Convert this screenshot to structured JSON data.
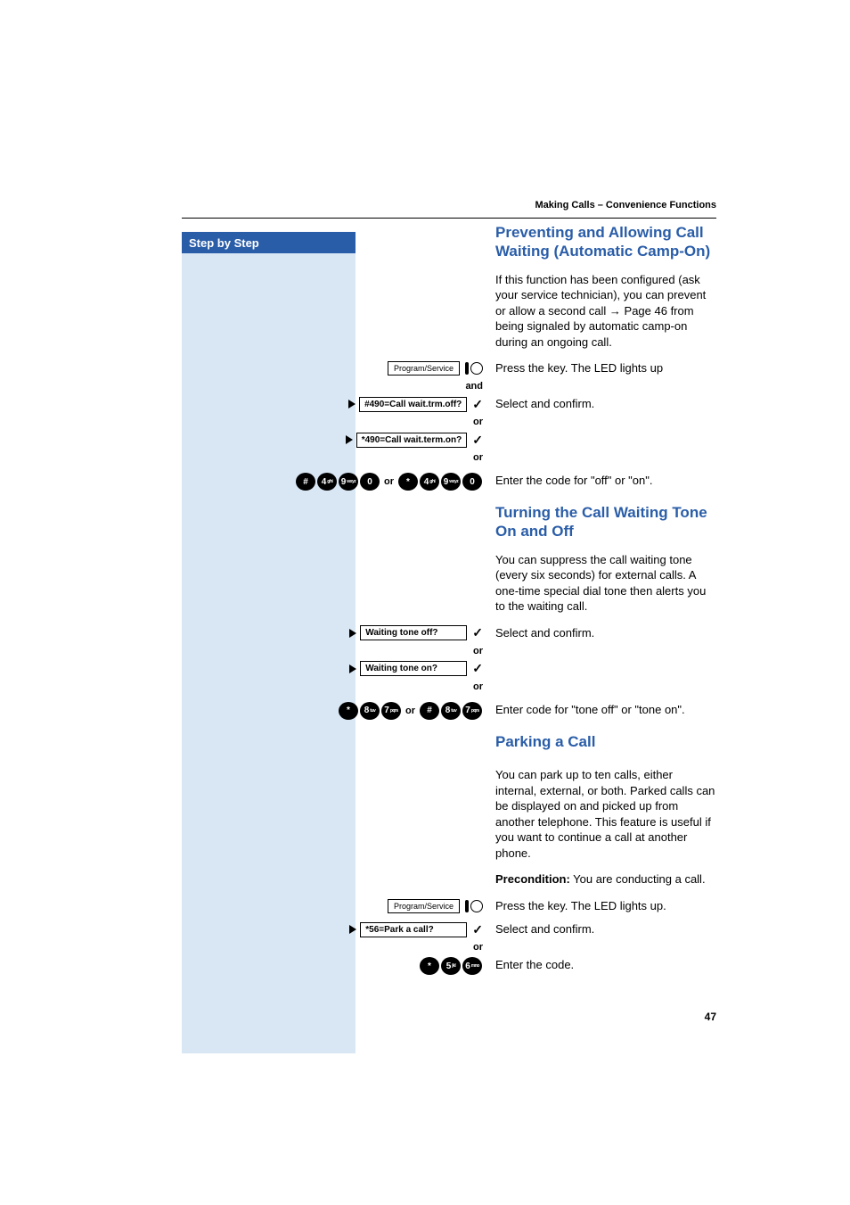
{
  "header": {
    "breadcrumb": "Making Calls – Convenience Functions"
  },
  "sidebar": {
    "title": "Step by Step"
  },
  "sections": {
    "camp_on": {
      "title": "Preventing and Allowing Call Waiting (Automatic Camp-On)",
      "intro_pre": "If this function has been configured (ask your service technician), you can prevent or allow a second call ",
      "intro_ref": "→ Page 46",
      "intro_post": " from being signaled by automatic camp-on during an ongoing call.",
      "key_label": "Program/Service",
      "press_key": "Press the key. The LED lights up",
      "and": "and",
      "lcd_off": "#490=Call wait.trm.off?",
      "lcd_on": "*490=Call wait.term.on?",
      "select_confirm": "Select and confirm.",
      "or": "or",
      "code_seq1": [
        {
          "main": "#",
          "sub": ""
        },
        {
          "main": "4",
          "sub": "ghi"
        },
        {
          "main": "9",
          "sub": "wxyz"
        },
        {
          "main": "0",
          "sub": ""
        }
      ],
      "code_seq2": [
        {
          "main": "*",
          "sub": ""
        },
        {
          "main": "4",
          "sub": "ghi"
        },
        {
          "main": "9",
          "sub": "wxyz"
        },
        {
          "main": "0",
          "sub": ""
        }
      ],
      "enter_code": "Enter the code for \"off\" or \"on\"."
    },
    "tone": {
      "title": "Turning the Call Waiting Tone On and Off",
      "intro": "You can suppress the call waiting tone (every six seconds) for external calls. A one-time special dial tone then alerts you to the waiting call.",
      "lcd_off": "Waiting tone off?",
      "lcd_on": "Waiting tone on?",
      "select_confirm": "Select and confirm.",
      "or": "or",
      "code_seq1": [
        {
          "main": "*",
          "sub": ""
        },
        {
          "main": "8",
          "sub": "tuv"
        },
        {
          "main": "7",
          "sub": "pqrs"
        }
      ],
      "code_seq2": [
        {
          "main": "#",
          "sub": ""
        },
        {
          "main": "8",
          "sub": "tuv"
        },
        {
          "main": "7",
          "sub": "pqrs"
        }
      ],
      "enter_code": "Enter code for \"tone off\" or \"tone on\"."
    },
    "park": {
      "title": "Parking a Call",
      "intro": "You can park up to ten calls, either internal, external, or both. Parked calls can be displayed on and picked up from another telephone. This feature is useful if you want to continue a call at another phone.",
      "precond_label": "Precondition:",
      "precond_text": " You are conducting a call.",
      "key_label": "Program/Service",
      "press_key": "Press the key. The LED lights up.",
      "lcd": "*56=Park a call?",
      "select_confirm": "Select and confirm.",
      "or": "or",
      "code_seq": [
        {
          "main": "*",
          "sub": ""
        },
        {
          "main": "5",
          "sub": "jkl"
        },
        {
          "main": "6",
          "sub": "mno"
        }
      ],
      "enter_code": "Enter the code."
    }
  },
  "page_number": "47",
  "colors": {
    "accent": "#2a5da8",
    "sidebar_bg": "#d9e7f5"
  }
}
